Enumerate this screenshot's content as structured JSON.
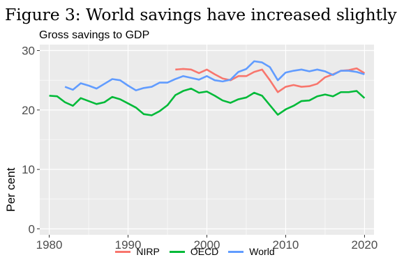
{
  "figure_caption": "Figure 3: World savings have increased slightly",
  "chart_data": {
    "type": "line",
    "title": "Gross savings to GDP",
    "xlabel": "",
    "ylabel": "Per cent",
    "xlim": [
      1978.8,
      2021.2
    ],
    "ylim": [
      -1,
      31
    ],
    "x_ticks": [
      1980,
      1990,
      2000,
      2010,
      2020
    ],
    "x_tick_labels": [
      "1980",
      "1990",
      "2000",
      "2010",
      "2020"
    ],
    "y_ticks": [
      0,
      10,
      20,
      30
    ],
    "y_tick_labels": [
      "0",
      "10",
      "20",
      "30"
    ],
    "grid": true,
    "legend_position": "bottom",
    "series": [
      {
        "name": "NIRP",
        "color": "#F8766D",
        "x": [
          1996,
          1997,
          1998,
          1999,
          2000,
          2001,
          2002,
          2003,
          2004,
          2005,
          2006,
          2007,
          2008,
          2009,
          2010,
          2011,
          2012,
          2013,
          2014,
          2015,
          2016,
          2017,
          2018,
          2019,
          2020
        ],
        "y": [
          26.8,
          26.9,
          26.8,
          26.2,
          26.8,
          26.0,
          25.3,
          25.0,
          25.7,
          25.7,
          26.4,
          26.8,
          25.0,
          23.0,
          23.9,
          24.2,
          23.9,
          24.0,
          24.4,
          25.5,
          26.0,
          26.6,
          26.7,
          27.0,
          26.2
        ]
      },
      {
        "name": "OECD",
        "color": "#00BA38",
        "x": [
          1980,
          1981,
          1982,
          1983,
          1984,
          1985,
          1986,
          1987,
          1988,
          1989,
          1990,
          1991,
          1992,
          1993,
          1994,
          1995,
          1996,
          1997,
          1998,
          1999,
          2000,
          2001,
          2002,
          2003,
          2004,
          2005,
          2006,
          2007,
          2008,
          2009,
          2010,
          2011,
          2012,
          2013,
          2014,
          2015,
          2016,
          2017,
          2018,
          2019,
          2020
        ],
        "y": [
          22.4,
          22.3,
          21.3,
          20.7,
          22.0,
          21.5,
          21.0,
          21.3,
          22.2,
          21.8,
          21.1,
          20.4,
          19.3,
          19.1,
          19.8,
          20.8,
          22.5,
          23.2,
          23.6,
          22.9,
          23.1,
          22.4,
          21.6,
          21.2,
          21.8,
          22.1,
          22.9,
          22.4,
          20.8,
          19.2,
          20.1,
          20.7,
          21.5,
          21.6,
          22.3,
          22.6,
          22.3,
          23.0,
          23.0,
          23.2,
          22.0
        ]
      },
      {
        "name": "World",
        "color": "#619CFF",
        "x": [
          1982,
          1983,
          1984,
          1985,
          1986,
          1987,
          1988,
          1989,
          1990,
          1991,
          1992,
          1993,
          1994,
          1995,
          1996,
          1997,
          1998,
          1999,
          2000,
          2001,
          2002,
          2003,
          2004,
          2005,
          2006,
          2007,
          2008,
          2009,
          2010,
          2011,
          2012,
          2013,
          2014,
          2015,
          2016,
          2017,
          2018,
          2019,
          2020
        ],
        "y": [
          23.9,
          23.4,
          24.5,
          24.1,
          23.6,
          24.4,
          25.2,
          25.0,
          24.1,
          23.3,
          23.7,
          23.9,
          24.6,
          24.6,
          25.2,
          25.7,
          25.4,
          25.1,
          25.7,
          25.0,
          24.8,
          25.1,
          26.4,
          26.9,
          28.2,
          28.0,
          27.2,
          25.0,
          26.3,
          26.6,
          26.8,
          26.5,
          26.8,
          26.5,
          25.9,
          26.6,
          26.6,
          26.4,
          26.0
        ]
      }
    ]
  }
}
